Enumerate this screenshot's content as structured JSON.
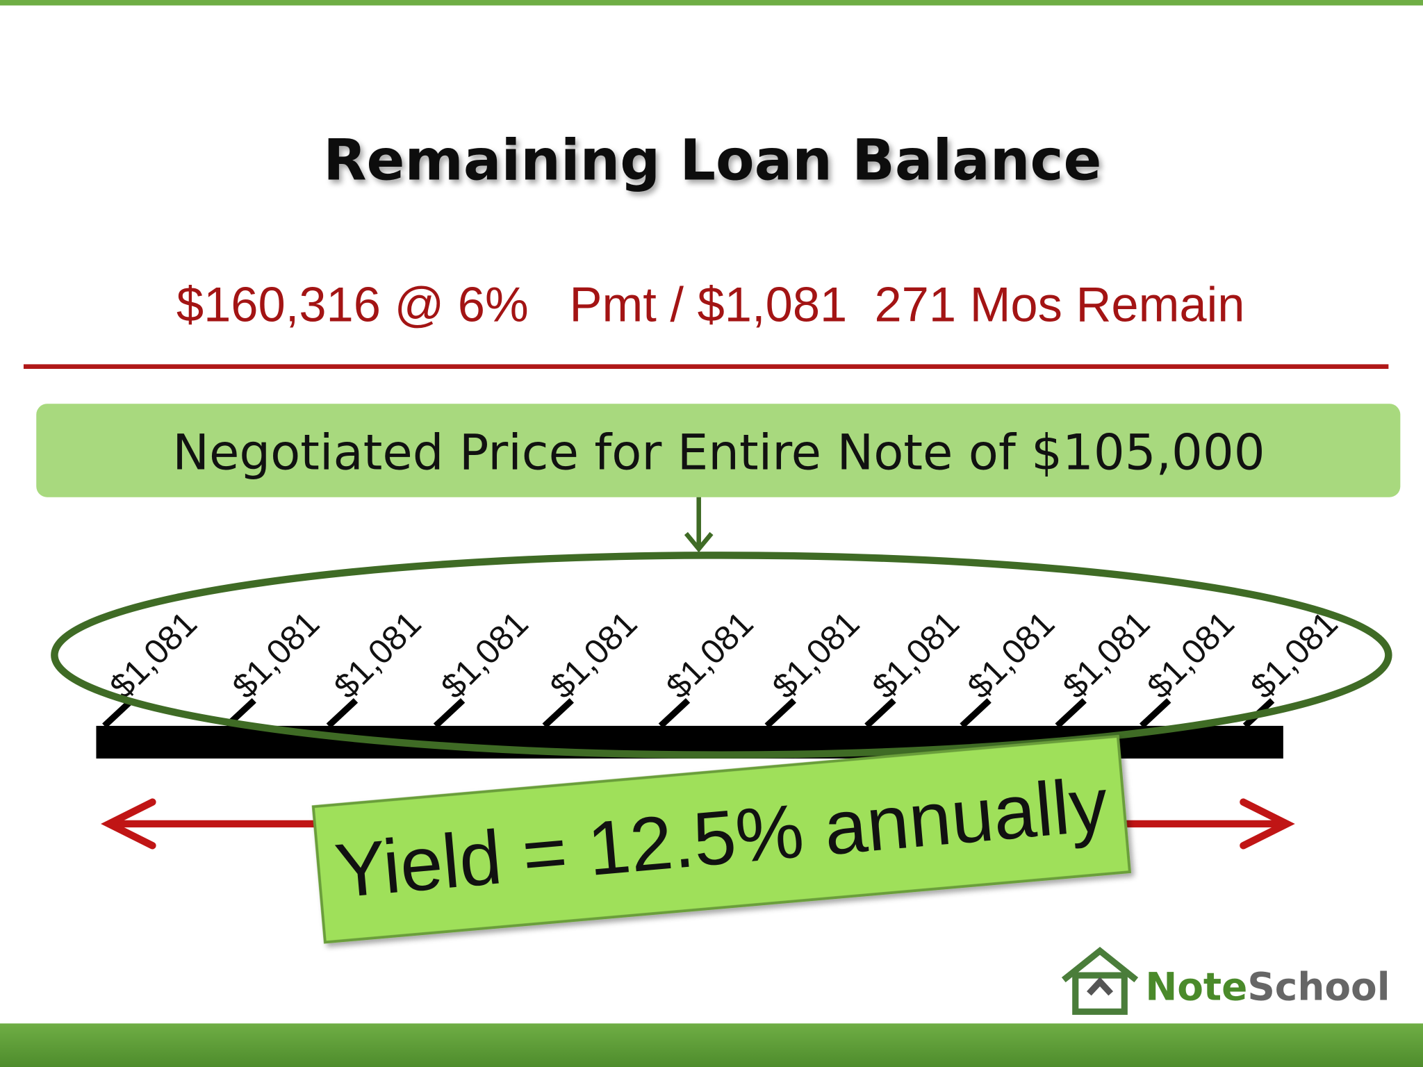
{
  "title": "Remaining Loan Balance",
  "loan_terms": "$160,316 @ 6%   Pmt / $1,081  271 Mos Remain",
  "price_box": "Negotiated Price for Entire Note of $105,000",
  "payments": [
    "$1,081",
    "$1,081",
    "$1,081",
    "$1,081",
    "$1,081",
    "$1,081",
    "$1,081",
    "$1,081",
    "$1,081",
    "$1,081",
    "$1,081",
    "$1,081"
  ],
  "yield": "Yield = 12.5% annually",
  "logo": {
    "part1": "Note",
    "part2": "School"
  }
}
